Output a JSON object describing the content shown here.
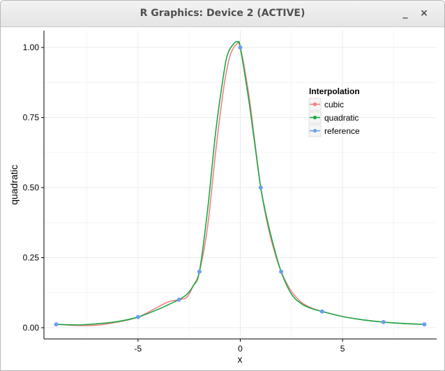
{
  "window": {
    "title": "R Graphics: Device 2 (ACTIVE)",
    "minimize_glyph": "_",
    "close_glyph": "×"
  },
  "chart_data": {
    "type": "line",
    "title": "",
    "xlabel": "x",
    "ylabel": "quadratic",
    "xlim": [
      -9.6,
      9.6
    ],
    "ylim": [
      -0.04,
      1.06
    ],
    "x_ticks": [
      -5,
      0,
      5
    ],
    "x_tick_labels": [
      "-5",
      "0",
      "5"
    ],
    "y_ticks": [
      0,
      0.25,
      0.5,
      0.75,
      1.0
    ],
    "y_tick_labels": [
      "0.00",
      "0.25",
      "0.50",
      "0.75",
      "1.00"
    ],
    "grid": true,
    "legend_position": "top-right",
    "legend": {
      "title": "Interpolation",
      "entries": [
        "cubic",
        "quadratic",
        "reference"
      ]
    },
    "colors": {
      "cubic": "#f08080",
      "quadratic": "#1aa845",
      "reference": "#6a9ff0",
      "grid": "#ebebeb",
      "axis": "#000000"
    },
    "series": [
      {
        "name": "cubic",
        "x": [
          -9,
          -8,
          -7,
          -6,
          -5,
          -4,
          -3.5,
          -3,
          -2.6,
          -2.3,
          -2,
          -1.6,
          -1.2,
          -0.8,
          -0.5,
          -0.2,
          0,
          0.4,
          0.7,
          1,
          1.3,
          1.6,
          2,
          2.5,
          3,
          3.5,
          4,
          5,
          6,
          7,
          8,
          9
        ],
        "y": [
          0.012,
          0.008,
          0.009,
          0.02,
          0.038,
          0.075,
          0.093,
          0.1,
          0.11,
          0.15,
          0.2,
          0.36,
          0.63,
          0.86,
          0.97,
          1.01,
          1.0,
          0.84,
          0.67,
          0.5,
          0.38,
          0.29,
          0.2,
          0.13,
          0.09,
          0.07,
          0.058,
          0.04,
          0.028,
          0.02,
          0.015,
          0.012
        ]
      },
      {
        "name": "quadratic",
        "x": [
          -9,
          -8,
          -7,
          -6,
          -5,
          -4,
          -3.5,
          -3,
          -2.6,
          -2.3,
          -2,
          -1.6,
          -1.2,
          -0.8,
          -0.6,
          -0.3,
          -0.1,
          0,
          0.4,
          0.7,
          1,
          1.3,
          1.6,
          2,
          2.5,
          3,
          3.5,
          4,
          5,
          6,
          7,
          8,
          9
        ],
        "y": [
          0.012,
          0.01,
          0.014,
          0.022,
          0.038,
          0.066,
          0.083,
          0.1,
          0.12,
          0.15,
          0.2,
          0.42,
          0.7,
          0.91,
          0.98,
          1.015,
          1.02,
          1.0,
          0.82,
          0.66,
          0.5,
          0.39,
          0.3,
          0.2,
          0.12,
          0.085,
          0.068,
          0.058,
          0.04,
          0.028,
          0.02,
          0.015,
          0.012
        ]
      },
      {
        "name": "reference",
        "x": [
          -9,
          -5,
          -3,
          -2,
          0,
          1,
          2,
          4,
          7,
          9
        ],
        "y": [
          0.012,
          0.038,
          0.1,
          0.2,
          1.0,
          0.5,
          0.2,
          0.058,
          0.02,
          0.012
        ]
      }
    ]
  }
}
